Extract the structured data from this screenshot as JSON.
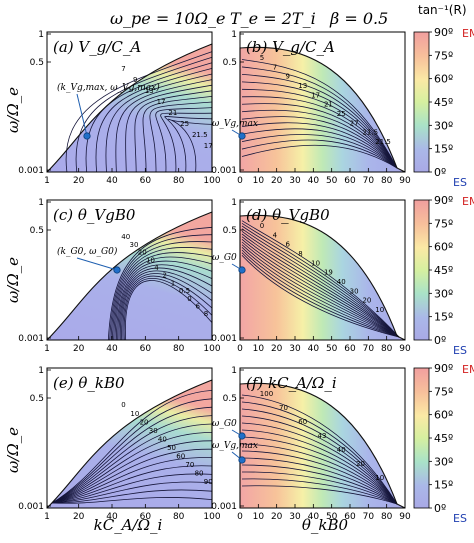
{
  "figure": {
    "header": [
      "ω_pe = 10Ω_e",
      "T_e = 2T_i",
      "β = 0.5"
    ],
    "colorbar_title": "tan⁻¹(R)",
    "colorbar_ticks": [
      "90º",
      "75º",
      "60º",
      "45º",
      "30º",
      "15º",
      "0º"
    ],
    "colorbar_em_label": "EMI",
    "colorbar_es_label": "ES",
    "ylabel": "ω/Ω_e",
    "xlabel_left": "kC_A/Ω_i",
    "xlabel_right": "θ_kB0",
    "y_ticks": [
      "1",
      "0.5",
      "0.001"
    ],
    "x_ticks_left": [
      "1",
      "20",
      "40",
      "60",
      "80",
      "100"
    ],
    "x_ticks_right": [
      "0",
      "10",
      "20",
      "30",
      "40",
      "50",
      "60",
      "70",
      "80",
      "90"
    ]
  },
  "chart_data": [
    {
      "type": "heatmap",
      "panel": "a",
      "title": "(a) V_g/C_A",
      "x_domain": [
        1,
        100
      ],
      "y_domain": [
        0.001,
        1
      ],
      "contour_labels": [
        "7",
        "9",
        "13",
        "17",
        "21",
        "25",
        "21.5",
        "17"
      ],
      "annotation": "(k_Vg,max, ω_Vg,max)"
    },
    {
      "type": "heatmap",
      "panel": "b",
      "title": "(b) V_g/C_A",
      "x_domain": [
        0,
        90
      ],
      "y_domain": [
        0.001,
        1
      ],
      "contour_labels": [
        "5",
        "7",
        "9",
        "13",
        "17",
        "21",
        "25",
        "27",
        "21.5",
        "21.5"
      ],
      "annotation": "ω_Vg,max"
    },
    {
      "type": "heatmap",
      "panel": "c",
      "title": "(c) θ_VgB0",
      "x_domain": [
        1,
        100
      ],
      "y_domain": [
        0.001,
        1
      ],
      "contour_labels": [
        "40",
        "30",
        "20",
        "10",
        "4",
        "2",
        "1",
        "0.5",
        "0",
        "6",
        "8"
      ],
      "annotation": "(k_G0, ω_G0)"
    },
    {
      "type": "heatmap",
      "panel": "d",
      "title": "(d) θ_VgB0",
      "x_domain": [
        0,
        90
      ],
      "y_domain": [
        0.001,
        1
      ],
      "contour_labels": [
        "0",
        "4",
        "6",
        "8",
        "10",
        "19",
        "40",
        "30",
        "20",
        "10"
      ],
      "annotation": "ω_G0"
    },
    {
      "type": "heatmap",
      "panel": "e",
      "title": "(e) θ_kB0",
      "x_domain": [
        1,
        100
      ],
      "y_domain": [
        0.001,
        1
      ],
      "contour_labels": [
        "0",
        "10",
        "20",
        "30",
        "40",
        "50",
        "60",
        "70",
        "80",
        "90"
      ]
    },
    {
      "type": "heatmap",
      "panel": "f",
      "title": "(f) kC_A/Ω_i",
      "x_domain": [
        0,
        90
      ],
      "y_domain": [
        0.001,
        1
      ],
      "contour_labels": [
        "100",
        "70",
        "60",
        "43",
        "40",
        "20",
        "10"
      ],
      "annotation": [
        "ω_G0",
        "ω_Vg,max"
      ]
    }
  ]
}
